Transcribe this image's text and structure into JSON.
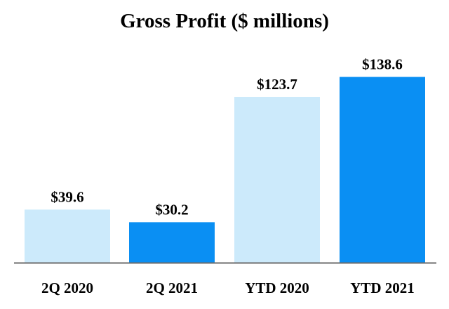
{
  "chart_data": {
    "type": "bar",
    "title": "Gross Profit ($ millions)",
    "xlabel": "",
    "ylabel": "",
    "ylim": [
      0,
      145
    ],
    "grid": false,
    "legend": "none",
    "categories": [
      "2Q 2020",
      "2Q 2021",
      "YTD 2020",
      "YTD 2021"
    ],
    "values": [
      39.6,
      30.2,
      123.7,
      138.6
    ],
    "value_labels": [
      "$39.6",
      "$30.2",
      "$123.7",
      "$138.6"
    ],
    "bar_colors": [
      "#cceafb",
      "#0a8ff3",
      "#cceafb",
      "#0a8ff3"
    ],
    "axis_color": "#6b6b6b"
  }
}
